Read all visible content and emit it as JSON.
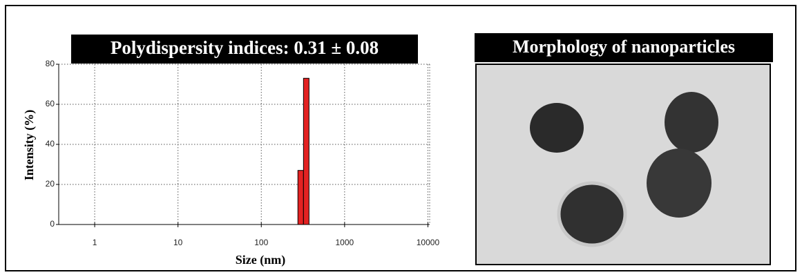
{
  "chart_data": {
    "type": "histogram",
    "title": "Polydispersity indices: 0.31 ± 0.08",
    "x_label": "Size (nm)",
    "y_label": "Intensity (%)",
    "bins": [
      275,
      321,
      374
    ],
    "counts": [
      27,
      73
    ],
    "color": "#e32222",
    "x_log": true,
    "xlim": [
      0.37,
      10500
    ],
    "xticks": [
      1,
      10,
      100,
      1000,
      10000
    ],
    "ylim": [
      0,
      80
    ],
    "yticks": [
      0,
      20,
      40,
      60,
      80
    ],
    "grid": true
  },
  "panel": {
    "title": "Morphology of nanoparticles"
  }
}
